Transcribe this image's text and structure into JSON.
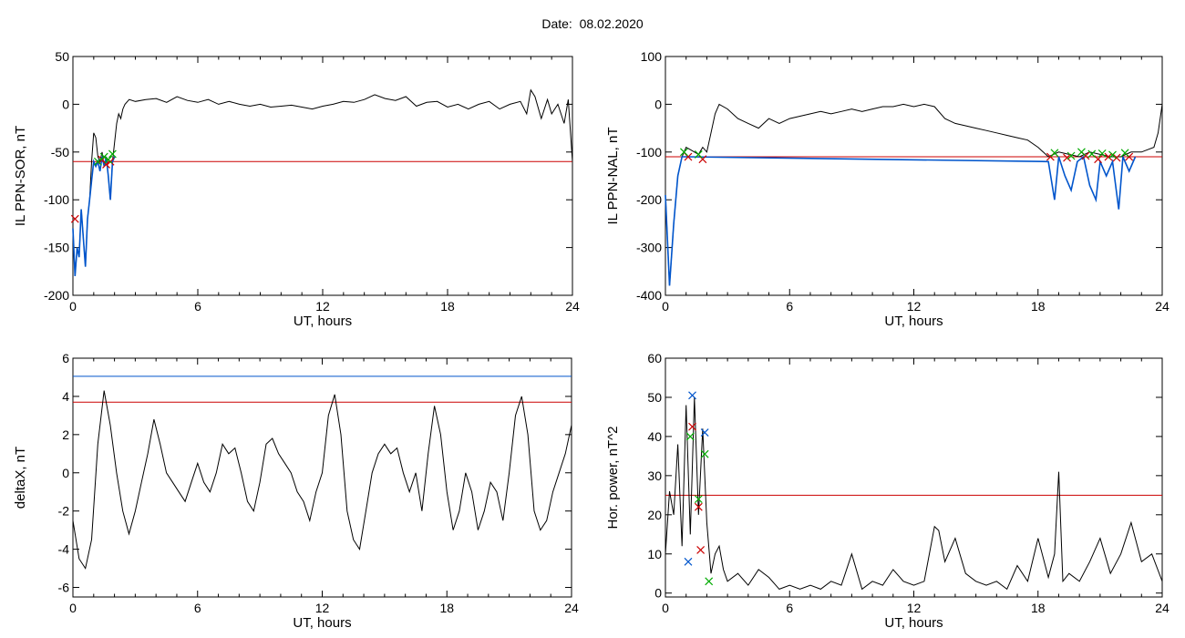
{
  "title": "Date:  08.02.2020",
  "chart_data": [
    {
      "type": "line",
      "title": "",
      "xlabel": "UT, hours",
      "ylabel": "IL PPN-SOR, nT",
      "xlim": [
        0,
        24
      ],
      "ylim": [
        -200,
        50
      ],
      "xticks": [
        0,
        6,
        12,
        18,
        24
      ],
      "yticks": [
        -200,
        -150,
        -100,
        -50,
        0,
        50
      ],
      "threshold": -60,
      "series": [
        {
          "color": "#000000",
          "x": [
            0,
            0.1,
            0.2,
            0.3,
            0.4,
            0.5,
            0.6,
            0.7,
            0.8,
            0.9,
            1.0,
            1.1,
            1.2,
            1.3,
            1.4,
            1.5,
            1.6,
            1.7,
            1.8,
            1.9,
            2.0,
            2.1,
            2.2,
            2.3,
            2.4,
            2.5,
            2.7,
            3.0,
            3.5,
            4,
            4.5,
            5,
            5.5,
            6,
            6.5,
            7,
            7.5,
            8,
            8.5,
            9,
            9.5,
            10,
            10.5,
            11,
            11.5,
            12,
            12.5,
            13,
            13.5,
            14,
            14.5,
            15,
            15.5,
            16,
            16.5,
            17,
            17.5,
            18,
            18.5,
            19,
            19.5,
            20,
            20.5,
            21,
            21.5,
            21.8,
            22,
            22.2,
            22.5,
            22.8,
            23,
            23.3,
            23.6,
            23.8,
            24
          ],
          "y": [
            -130,
            -180,
            -150,
            -160,
            -110,
            -140,
            -170,
            -120,
            -100,
            -60,
            -30,
            -35,
            -55,
            -60,
            -50,
            -65,
            -55,
            -75,
            -100,
            -60,
            -40,
            -20,
            -10,
            -15,
            -5,
            0,
            5,
            3,
            5,
            6,
            2,
            8,
            4,
            2,
            5,
            0,
            3,
            0,
            -2,
            0,
            -3,
            -2,
            -1,
            -3,
            -5,
            -2,
            0,
            3,
            2,
            5,
            10,
            6,
            4,
            8,
            -2,
            2,
            3,
            -3,
            0,
            -5,
            0,
            3,
            -5,
            0,
            3,
            -10,
            15,
            8,
            -15,
            5,
            -10,
            0,
            -20,
            5,
            -60
          ]
        },
        {
          "color": "#0055cc",
          "x": [
            0,
            0.1,
            0.2,
            0.3,
            0.4,
            0.5,
            0.6,
            0.7,
            0.8,
            0.9,
            1.0,
            1.1,
            1.2,
            1.3,
            1.4,
            1.5,
            1.6,
            1.7,
            1.8,
            1.9,
            2.0
          ],
          "y": [
            -130,
            -180,
            -150,
            -160,
            -110,
            -140,
            -170,
            -120,
            -100,
            -80,
            -60,
            -65,
            -60,
            -70,
            -55,
            -65,
            -55,
            -75,
            -100,
            -60,
            -55
          ]
        }
      ],
      "markers": [
        {
          "color": "#cc0000",
          "x": [
            0.1,
            1.4,
            1.6,
            1.8
          ],
          "y": [
            -120,
            -58,
            -63,
            -60
          ]
        },
        {
          "color": "#00aa00",
          "x": [
            1.2,
            1.5,
            1.7,
            1.9
          ],
          "y": [
            -60,
            -55,
            -58,
            -52
          ]
        }
      ]
    },
    {
      "type": "line",
      "title": "",
      "xlabel": "UT, hours",
      "ylabel": "IL PPN-NAL, nT",
      "xlim": [
        0,
        24
      ],
      "ylim": [
        -400,
        100
      ],
      "xticks": [
        0,
        6,
        12,
        18,
        24
      ],
      "yticks": [
        -400,
        -300,
        -200,
        -100,
        0,
        100
      ],
      "threshold": -110,
      "series": [
        {
          "color": "#000000",
          "x": [
            0,
            0.2,
            0.4,
            0.6,
            0.8,
            1.0,
            1.2,
            1.4,
            1.6,
            1.8,
            2.0,
            2.2,
            2.4,
            2.6,
            3.0,
            3.5,
            4,
            4.5,
            5,
            5.5,
            6,
            6.5,
            7,
            7.5,
            8,
            8.5,
            9,
            9.5,
            10,
            10.5,
            11,
            11.5,
            12,
            12.5,
            13,
            13.5,
            14,
            14.5,
            15,
            15.5,
            16,
            16.5,
            17,
            17.5,
            18,
            18.5,
            19,
            19.5,
            20,
            20.5,
            21,
            21.5,
            22,
            22.5,
            23,
            23.3,
            23.6,
            23.8,
            24
          ],
          "y": [
            -190,
            -380,
            -250,
            -150,
            -110,
            -90,
            -95,
            -100,
            -105,
            -90,
            -100,
            -60,
            -20,
            0,
            -10,
            -30,
            -40,
            -50,
            -30,
            -40,
            -30,
            -25,
            -20,
            -15,
            -20,
            -15,
            -10,
            -15,
            -10,
            -5,
            -5,
            0,
            -5,
            0,
            -5,
            -30,
            -40,
            -45,
            -50,
            -55,
            -60,
            -65,
            -70,
            -75,
            -90,
            -110,
            -100,
            -105,
            -110,
            -100,
            -105,
            -110,
            -110,
            -100,
            -100,
            -95,
            -90,
            -60,
            0
          ]
        },
        {
          "color": "#0055cc",
          "x": [
            0,
            0.2,
            0.4,
            0.6,
            0.8,
            1.0,
            18.5,
            18.8,
            19,
            19.3,
            19.6,
            19.9,
            20.2,
            20.5,
            20.8,
            21,
            21.3,
            21.6,
            21.9,
            22.1,
            22.4,
            22.7
          ],
          "y": [
            -190,
            -380,
            -250,
            -150,
            -110,
            -110,
            -120,
            -200,
            -110,
            -150,
            -180,
            -120,
            -110,
            -170,
            -200,
            -120,
            -150,
            -120,
            -220,
            -110,
            -140,
            -110
          ]
        }
      ],
      "markers": [
        {
          "color": "#cc0000",
          "x": [
            1.1,
            1.8,
            18.6,
            19.4,
            20.3,
            20.9,
            21.4,
            21.8,
            22.4
          ],
          "y": [
            -110,
            -115,
            -110,
            -112,
            -108,
            -115,
            -110,
            -112,
            -110
          ]
        },
        {
          "color": "#00aa00",
          "x": [
            0.9,
            1.6,
            18.8,
            19.6,
            20.1,
            20.6,
            21.1,
            21.6,
            22.2
          ],
          "y": [
            -100,
            -105,
            -102,
            -108,
            -100,
            -104,
            -103,
            -106,
            -102
          ]
        }
      ]
    },
    {
      "type": "line",
      "title": "",
      "xlabel": "UT, hours",
      "ylabel": "deltaX, nT",
      "xlim": [
        0,
        24
      ],
      "ylim": [
        -6.5,
        6
      ],
      "xticks": [
        0,
        6,
        12,
        18,
        24
      ],
      "yticks": [
        -6,
        -4,
        -2,
        0,
        2,
        4,
        6
      ],
      "threshold": 3.7,
      "threshold2": 5.05,
      "series": [
        {
          "color": "#000000",
          "x": [
            0,
            0.3,
            0.6,
            0.9,
            1.2,
            1.5,
            1.8,
            2.1,
            2.4,
            2.7,
            3.0,
            3.3,
            3.6,
            3.9,
            4.2,
            4.5,
            4.8,
            5.1,
            5.4,
            5.7,
            6.0,
            6.3,
            6.6,
            6.9,
            7.2,
            7.5,
            7.8,
            8.1,
            8.4,
            8.7,
            9.0,
            9.3,
            9.6,
            9.9,
            10.2,
            10.5,
            10.8,
            11.1,
            11.4,
            11.7,
            12.0,
            12.3,
            12.6,
            12.9,
            13.2,
            13.5,
            13.8,
            14.1,
            14.4,
            14.7,
            15.0,
            15.3,
            15.6,
            15.9,
            16.2,
            16.5,
            16.8,
            17.1,
            17.4,
            17.7,
            18.0,
            18.3,
            18.6,
            18.9,
            19.2,
            19.5,
            19.8,
            20.1,
            20.4,
            20.7,
            21.0,
            21.3,
            21.6,
            21.9,
            22.2,
            22.5,
            22.8,
            23.1,
            23.4,
            23.7,
            24
          ],
          "y": [
            -2.5,
            -4.5,
            -5,
            -3.5,
            1.5,
            4.3,
            2.5,
            0,
            -2,
            -3.2,
            -2,
            -0.5,
            1,
            2.8,
            1.5,
            0,
            -0.5,
            -1,
            -1.5,
            -0.5,
            0.5,
            -0.5,
            -1,
            0,
            1.5,
            1,
            1.3,
            0,
            -1.5,
            -2,
            -0.5,
            1.5,
            1.8,
            1,
            0.5,
            0,
            -1,
            -1.5,
            -2.5,
            -1,
            0,
            3,
            4.1,
            2,
            -2,
            -3.5,
            -4,
            -2,
            0,
            1,
            1.5,
            1,
            1.3,
            0,
            -1,
            0,
            -2,
            1,
            3.5,
            2,
            -1,
            -3,
            -2,
            0,
            -1,
            -3,
            -2,
            -0.5,
            -1,
            -2.5,
            0,
            3,
            4,
            2,
            -2,
            -3,
            -2.5,
            -1,
            0,
            1,
            2.5
          ]
        }
      ],
      "markers": []
    },
    {
      "type": "line",
      "title": "",
      "xlabel": "UT, hours",
      "ylabel": "Hor. power, nT^2",
      "xlim": [
        0,
        24
      ],
      "ylim": [
        -1,
        60
      ],
      "xticks": [
        0,
        6,
        12,
        18,
        24
      ],
      "yticks": [
        0,
        10,
        20,
        30,
        40,
        50,
        60
      ],
      "threshold": 25,
      "series": [
        {
          "color": "#000000",
          "x": [
            0,
            0.2,
            0.4,
            0.6,
            0.8,
            1.0,
            1.2,
            1.4,
            1.6,
            1.8,
            2.0,
            2.2,
            2.4,
            2.6,
            2.8,
            3.0,
            3.5,
            4,
            4.5,
            5,
            5.5,
            6,
            6.5,
            7,
            7.5,
            8,
            8.5,
            9,
            9.5,
            10,
            10.5,
            11,
            11.5,
            12,
            12.5,
            13,
            13.2,
            13.5,
            14,
            14.5,
            15,
            15.5,
            16,
            16.5,
            17,
            17.5,
            18,
            18.5,
            18.8,
            19,
            19.2,
            19.5,
            20,
            20.5,
            21,
            21.5,
            22,
            22.5,
            23,
            23.5,
            24
          ],
          "y": [
            10,
            26,
            20,
            38,
            12,
            48,
            15,
            50,
            20,
            42,
            18,
            5,
            10,
            12,
            6,
            3,
            5,
            2,
            6,
            4,
            1,
            2,
            1,
            2,
            1,
            3,
            2,
            10,
            1,
            3,
            2,
            6,
            3,
            2,
            3,
            17,
            16,
            8,
            14,
            5,
            3,
            2,
            3,
            1,
            7,
            3,
            14,
            4,
            10,
            31,
            3,
            5,
            3,
            8,
            14,
            5,
            10,
            18,
            8,
            10,
            3
          ]
        }
      ],
      "markers": [
        {
          "color": "#0055cc",
          "x": [
            1.1,
            1.3,
            1.9
          ],
          "y": [
            8,
            50.5,
            41
          ]
        },
        {
          "color": "#cc0000",
          "x": [
            1.3,
            1.6,
            1.7
          ],
          "y": [
            42.5,
            22,
            11
          ]
        },
        {
          "color": "#00aa00",
          "x": [
            1.2,
            1.6,
            1.9,
            2.1
          ],
          "y": [
            40,
            24,
            35.5,
            3
          ]
        }
      ]
    }
  ]
}
